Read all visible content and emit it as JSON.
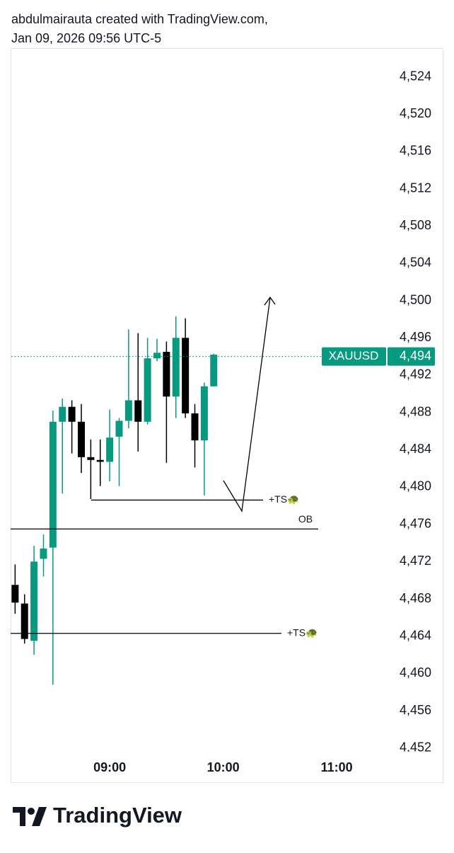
{
  "header": {
    "line1": "abdulmairauta created with TradingView.com,",
    "line2": "Jan 09, 2026 09:56 UTC-5"
  },
  "chart_data": {
    "type": "candlestick",
    "x": [
      "08:10",
      "08:15",
      "08:20",
      "08:25",
      "08:30",
      "08:35",
      "08:40",
      "08:45",
      "08:50",
      "08:55",
      "09:00",
      "09:05",
      "09:10",
      "09:15",
      "09:20",
      "09:25",
      "09:30",
      "09:35",
      "09:40",
      "09:45",
      "09:50",
      "09:55"
    ],
    "open": [
      4469.5,
      4467.5,
      4463.5,
      4472.3,
      4473.5,
      4487.0,
      4488.6,
      4487.0,
      4483.2,
      4482.9,
      4482.7,
      4485.4,
      4487.1,
      4489.3,
      4487.0,
      4493.8,
      4494.5,
      4489.7,
      4496.0,
      4487.9,
      4485.0,
      4490.8
    ],
    "high": [
      4471.7,
      4468.5,
      4473.7,
      4474.9,
      4488.2,
      4489.5,
      4489.3,
      4488.9,
      4485.1,
      4485.1,
      4488.3,
      4487.4,
      4496.9,
      4496.5,
      4496.0,
      4495.9,
      4495.6,
      4498.3,
      4498.1,
      4488.9,
      4491.2,
      4494.3
    ],
    "low": [
      4466.4,
      4463.2,
      4462.0,
      4470.4,
      4458.8,
      4479.3,
      4483.6,
      4481.5,
      4478.7,
      4480.1,
      4480.6,
      4480.1,
      4486.3,
      4483.8,
      4486.7,
      4493.5,
      4482.6,
      4487.4,
      4487.4,
      4482.1,
      4479.1,
      4490.8
    ],
    "close": [
      4467.6,
      4463.7,
      4472.0,
      4473.4,
      4487.0,
      4488.6,
      4487.0,
      4483.2,
      4482.9,
      4482.7,
      4485.3,
      4487.1,
      4489.3,
      4487.0,
      4493.8,
      4494.4,
      4489.7,
      4496.0,
      4487.9,
      4485.0,
      4490.8,
      4494.2
    ],
    "up_color": "#089981",
    "down_color": "#000000",
    "xlim": [
      "08:08",
      "11:56"
    ],
    "xticks": [
      "09:00",
      "10:00",
      "11:00"
    ],
    "ylim": [
      4451.6,
      4527
    ],
    "yticks": [
      {
        "value": 4524,
        "label": "4,524"
      },
      {
        "value": 4520,
        "label": "4,520"
      },
      {
        "value": 4516,
        "label": "4,516"
      },
      {
        "value": 4512,
        "label": "4,512"
      },
      {
        "value": 4508,
        "label": "4,508"
      },
      {
        "value": 4504,
        "label": "4,504"
      },
      {
        "value": 4500,
        "label": "4,500"
      },
      {
        "value": 4496,
        "label": "4,496"
      },
      {
        "value": 4492,
        "label": "4,492"
      },
      {
        "value": 4488,
        "label": "4,488"
      },
      {
        "value": 4484,
        "label": "4,484"
      },
      {
        "value": 4480,
        "label": "4,480"
      },
      {
        "value": 4476,
        "label": "4,476"
      },
      {
        "value": 4472,
        "label": "4,472"
      },
      {
        "value": 4468,
        "label": "4,468"
      },
      {
        "value": 4464,
        "label": "4,464"
      },
      {
        "value": 4460,
        "label": "4,460"
      },
      {
        "value": 4456,
        "label": "4,456"
      },
      {
        "value": 4452,
        "label": "4,452"
      }
    ],
    "last_price": {
      "symbol": "XAUUSD",
      "value": 4494,
      "label": "4,494"
    },
    "annotations": [
      {
        "text": "+TS🐢",
        "value": 4478.6
      },
      {
        "text": "OB",
        "value": 4475.5
      },
      {
        "text": "+TS🐢",
        "value": 4464.3
      }
    ]
  },
  "footer": {
    "brand": "TradingView"
  }
}
